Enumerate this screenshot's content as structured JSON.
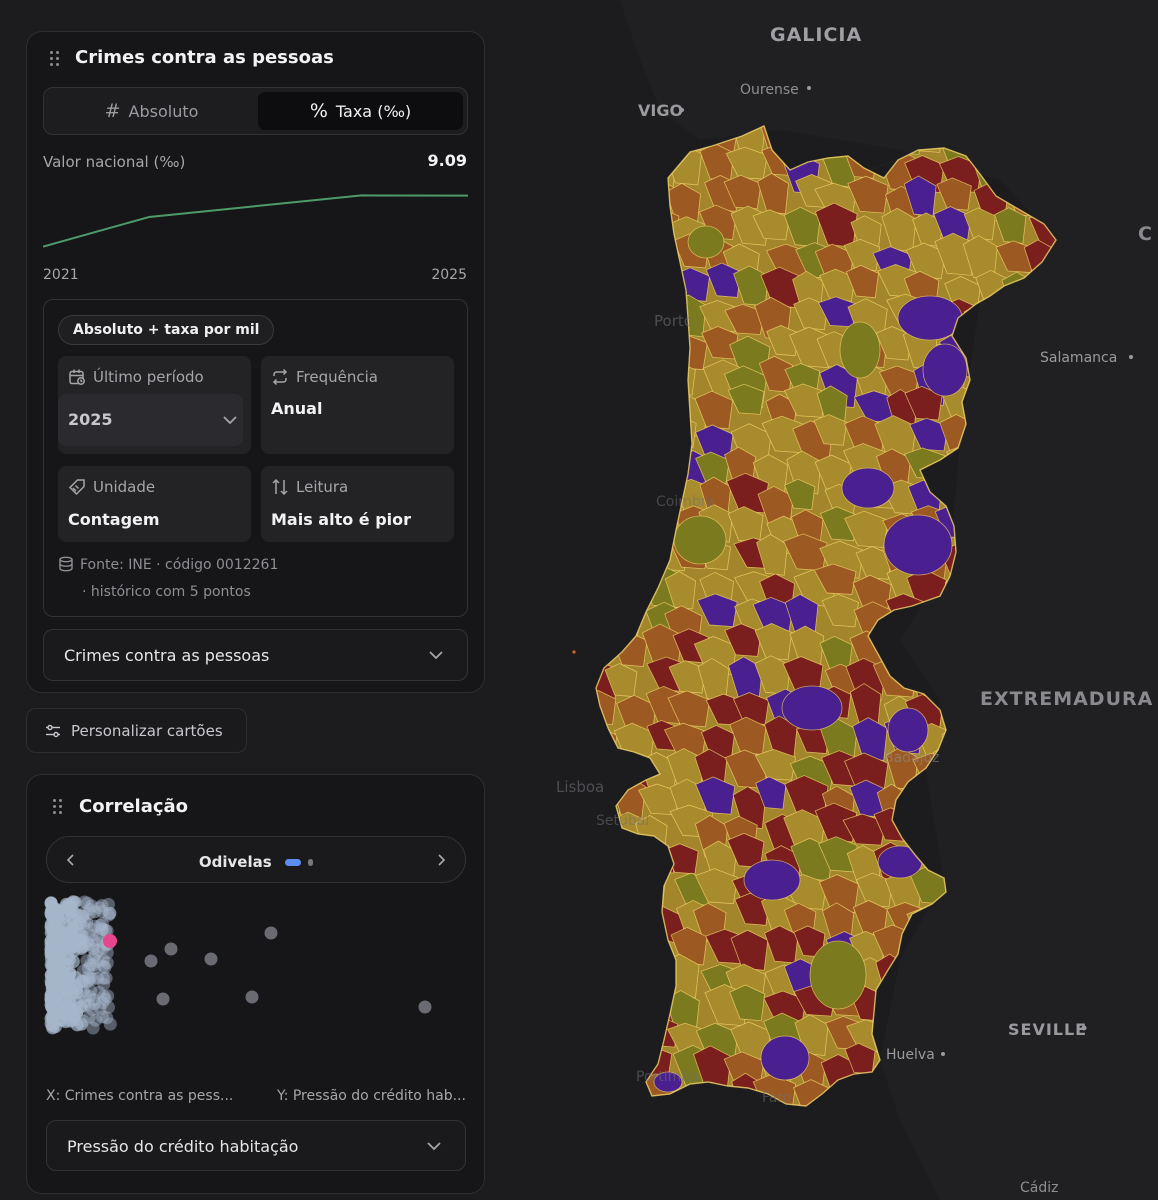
{
  "map": {
    "labels": [
      {
        "text": "GALICIA",
        "kind": "country"
      },
      {
        "text": "VIGO",
        "kind": "city"
      },
      {
        "text": "Ourense",
        "kind": "town"
      },
      {
        "text": "Porto",
        "kind": "town"
      },
      {
        "text": "Salamanca",
        "kind": "town"
      },
      {
        "text": "Coimbra",
        "kind": "town"
      },
      {
        "text": "EXTREMADURA",
        "kind": "country"
      },
      {
        "text": "Badajoz",
        "kind": "town"
      },
      {
        "text": "Lisboa",
        "kind": "town"
      },
      {
        "text": "Setúbal",
        "kind": "town"
      },
      {
        "text": "SEVILLE",
        "kind": "city"
      },
      {
        "text": "Huelva",
        "kind": "town"
      },
      {
        "text": "Portimão",
        "kind": "town"
      },
      {
        "text": "Faro",
        "kind": "town"
      },
      {
        "text": "Cádiz",
        "kind": "town"
      },
      {
        "text": "C",
        "kind": "country"
      }
    ],
    "colors": {
      "yellow": "#a88b2c",
      "orange": "#9c5a22",
      "red": "#7a1f1d",
      "purple": "#4a1f8f",
      "olive": "#7c7a1e",
      "border": "#f3d36a"
    }
  },
  "crimes_card": {
    "title": "Crimes contra as pessoas",
    "mode_absolute": "Absoluto",
    "mode_rate": "Taxa (‰)",
    "active_mode": "rate",
    "national_label": "Valor nacional (‰)",
    "national_value": "9.09",
    "year_start": "2021",
    "year_end": "2025",
    "trend_values": [
      7.2,
      8.3,
      8.7,
      9.1,
      9.09
    ],
    "badge": "Absoluto + taxa por mil",
    "last_period_label": "Último período",
    "last_period_value": "2025",
    "frequency_label": "Frequência",
    "frequency_value": "Anual",
    "unit_label": "Unidade",
    "unit_value": "Contagem",
    "reading_label": "Leitura",
    "reading_value": "Mais alto é pior",
    "source_line1": "Fonte: INE · código 0012261",
    "source_line2": "· histórico com 5 pontos",
    "indicator_select": "Crimes contra as pessoas"
  },
  "personalize_button": "Personalizar cartões",
  "correlation_card": {
    "title": "Correlação",
    "selected_municipality": "Odivelas",
    "x_axis": "X: Crimes contra as pess...",
    "y_axis": "Y: Pressão do crédito hab...",
    "y_select": "Pressão do crédito habitação",
    "highlight_color": "#e8458f",
    "point_color": "#a7b6cb",
    "outlier_color": "#6a6a72",
    "points_count": 308
  }
}
